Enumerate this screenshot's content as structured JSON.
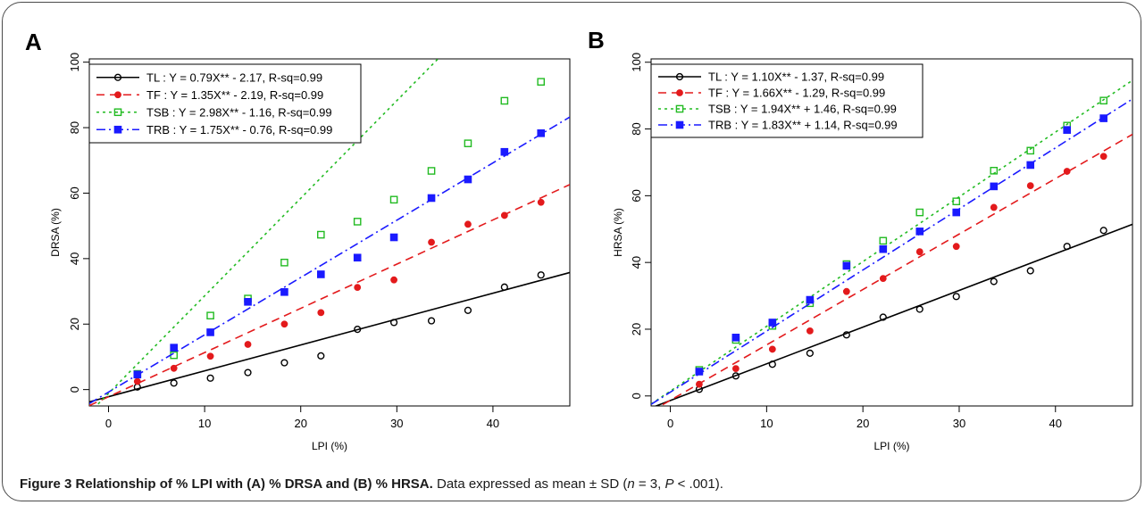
{
  "caption": {
    "label": "Figure 3",
    "title": "Relationship of % LPI with (A) % DRSA and (B) % HRSA.",
    "note_prefix": "Data expressed as mean ± SD (",
    "n_symbol": "n",
    "n_value": " = 3, ",
    "p_symbol": "P",
    "p_value": " < .001)."
  },
  "chart_data": [
    {
      "panel_label": "A",
      "type": "scatter",
      "xlabel": "LPI (%)",
      "ylabel": "DRSA (%)",
      "xlim": [
        -2,
        48
      ],
      "ylim": [
        -5,
        101
      ],
      "xticks": [
        0,
        10,
        20,
        30,
        40
      ],
      "yticks": [
        0,
        20,
        40,
        60,
        80,
        100
      ],
      "grid": false,
      "legend_position": "top-left",
      "x": [
        3,
        6.8,
        10.6,
        14.5,
        18.3,
        22.1,
        25.9,
        29.7,
        33.6,
        37.4,
        41.2,
        45
      ],
      "series": [
        {
          "name": "TL : Y = 0.79X** - 2.17, R-sq=0.99",
          "color": "#000000",
          "marker": "circle-open",
          "line": "solid",
          "slope": 0.79,
          "intercept": -2.17,
          "values": [
            0.8,
            2,
            3.5,
            5.2,
            8.2,
            10.3,
            18.4,
            20.5,
            21,
            24.2,
            31.3,
            35
          ]
        },
        {
          "name": "TF : Y = 1.35X** - 2.19, R-sq=0.99",
          "color": "#e31a1c",
          "marker": "circle-filled",
          "line": "dashed",
          "slope": 1.35,
          "intercept": -2.19,
          "values": [
            2.5,
            6.5,
            10.2,
            13.8,
            20,
            23.5,
            31.2,
            33.5,
            45,
            50.5,
            53.2,
            57.2
          ]
        },
        {
          "name": "TSB : Y = 2.98X** - 1.16, R-sq=0.99",
          "color": "#22bb22",
          "marker": "square-open",
          "line": "dotted",
          "slope": 2.98,
          "intercept": -1.16,
          "values": [
            4.8,
            10.5,
            22.6,
            27.8,
            38.8,
            47.3,
            51.3,
            58,
            66.8,
            75.2,
            88.2,
            94
          ]
        },
        {
          "name": "TRB : Y = 1.75X** - 0.76, R-sq=0.99",
          "color": "#1a1aff",
          "marker": "square-filled",
          "line": "dashdot",
          "slope": 1.75,
          "intercept": -0.76,
          "values": [
            4.6,
            12.8,
            17.5,
            26.8,
            29.8,
            35.2,
            40.3,
            46.5,
            58.5,
            64.2,
            72.6,
            78.3
          ]
        }
      ]
    },
    {
      "panel_label": "B",
      "type": "scatter",
      "xlabel": "LPI (%)",
      "ylabel": "HRSA (%)",
      "xlim": [
        -2,
        48
      ],
      "ylim": [
        -3,
        101
      ],
      "xticks": [
        0,
        10,
        20,
        30,
        40
      ],
      "yticks": [
        0,
        20,
        40,
        60,
        80,
        100
      ],
      "grid": false,
      "legend_position": "top-left",
      "x": [
        3,
        6.8,
        10.6,
        14.5,
        18.3,
        22.1,
        25.9,
        29.7,
        33.6,
        37.4,
        41.2,
        45
      ],
      "series": [
        {
          "name": "TL : Y = 1.10X** - 1.37, R-sq=0.99",
          "color": "#000000",
          "marker": "circle-open",
          "line": "solid",
          "slope": 1.1,
          "intercept": -1.37,
          "values": [
            2,
            6,
            9.5,
            12.8,
            18.3,
            23.6,
            26,
            29.8,
            34.3,
            37.5,
            44.8,
            49.6
          ]
        },
        {
          "name": "TF : Y = 1.66X** - 1.29, R-sq=0.99",
          "color": "#e31a1c",
          "marker": "circle-filled",
          "line": "dashed",
          "slope": 1.66,
          "intercept": -1.29,
          "values": [
            3.5,
            8.2,
            14,
            19.5,
            31.3,
            35.2,
            43.2,
            44.8,
            56.5,
            63,
            67.3,
            71.8
          ]
        },
        {
          "name": "TSB : Y = 1.94X** + 1.46, R-sq=0.99",
          "color": "#22bb22",
          "marker": "square-open",
          "line": "dotted",
          "slope": 1.94,
          "intercept": 1.46,
          "values": [
            7.8,
            16.8,
            21,
            27.8,
            39.5,
            46.5,
            55,
            58.3,
            67.5,
            73.5,
            81,
            88.5
          ]
        },
        {
          "name": "TRB : Y = 1.83X** + 1.14, R-sq=0.99",
          "color": "#1a1aff",
          "marker": "square-filled",
          "line": "dashdot",
          "slope": 1.83,
          "intercept": 1.14,
          "values": [
            7.3,
            17.5,
            22,
            28.8,
            39,
            44,
            49.3,
            55,
            62.8,
            69.2,
            79.7,
            83.2
          ]
        }
      ]
    }
  ]
}
